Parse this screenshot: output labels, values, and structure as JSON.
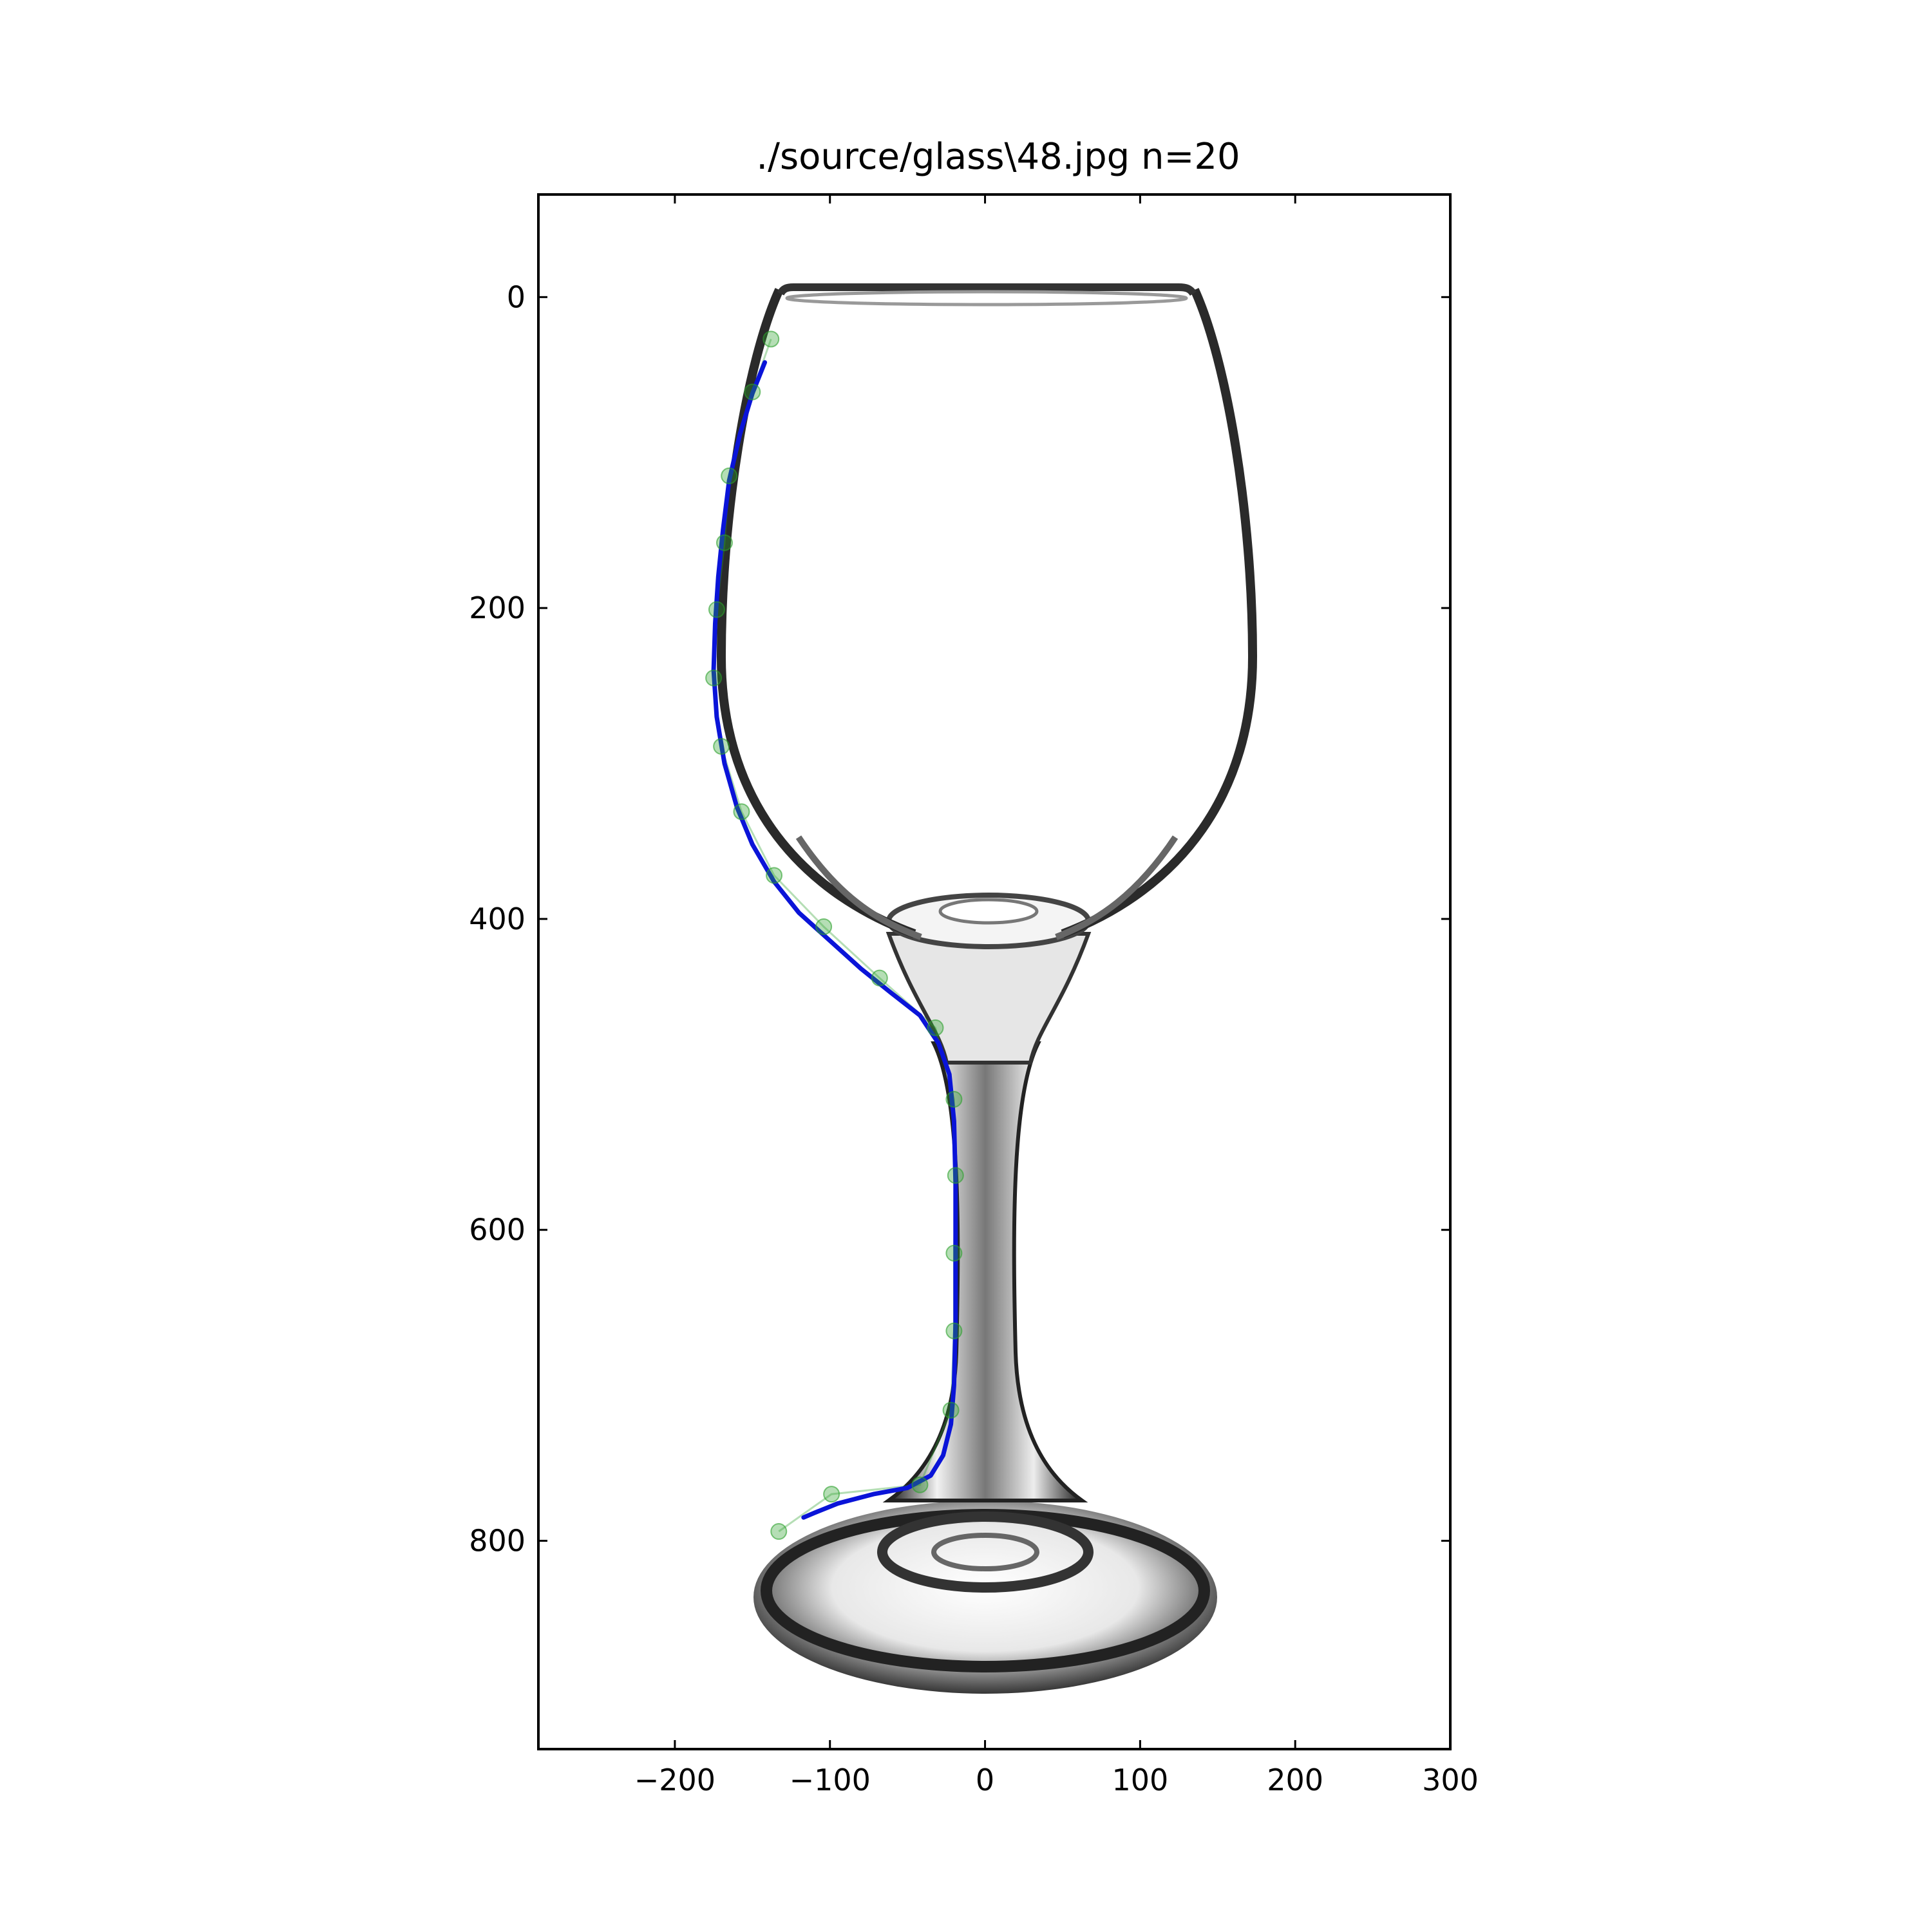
{
  "chart_data": {
    "type": "scatter",
    "title": "./source/glass\\48.jpg n=20",
    "xlabel": "",
    "ylabel": "",
    "xlim": [
      -288,
      300
    ],
    "ylim": [
      934,
      -66
    ],
    "y_inverted": true,
    "grid": false,
    "legend": "none",
    "background_image": "wine-glass",
    "xticks": [
      {
        "value": -200,
        "label": "−200"
      },
      {
        "value": -100,
        "label": "−100"
      },
      {
        "value": 0,
        "label": "0"
      },
      {
        "value": 100,
        "label": "100"
      },
      {
        "value": 200,
        "label": "200"
      },
      {
        "value": 300,
        "label": "300"
      }
    ],
    "yticks": [
      {
        "value": 0,
        "label": "0"
      },
      {
        "value": 200,
        "label": "200"
      },
      {
        "value": 400,
        "label": "400"
      },
      {
        "value": 600,
        "label": "600"
      },
      {
        "value": 800,
        "label": "800"
      }
    ],
    "series": [
      {
        "kind": "points",
        "color": "#2ca02c",
        "x": [
          -138,
          -150,
          -165,
          -168,
          -173,
          -175,
          -170,
          -157,
          -136,
          -104,
          -68,
          -32,
          -20,
          -19,
          -20,
          -20,
          -22,
          -42,
          -99,
          -133
        ],
        "y": [
          27,
          61,
          115,
          158,
          201,
          245,
          289,
          331,
          372,
          405,
          438,
          470,
          516,
          565,
          615,
          665,
          716,
          764,
          770,
          794
        ]
      },
      {
        "kind": "line",
        "color": "#0a14d8",
        "x": [
          -142,
          -150,
          -158,
          -165,
          -169,
          -172,
          -174,
          -175,
          -173,
          -168,
          -160,
          -150,
          -136,
          -120,
          -100,
          -80,
          -60,
          -42,
          -30,
          -23,
          -20,
          -19,
          -19,
          -19,
          -20,
          -22,
          -27,
          -35,
          -50,
          -72,
          -95,
          -110,
          -117
        ],
        "y": [
          42,
          62,
          88,
          118,
          150,
          180,
          210,
          240,
          270,
          300,
          328,
          352,
          376,
          396,
          414,
          432,
          448,
          462,
          480,
          500,
          530,
          570,
          620,
          660,
          700,
          725,
          745,
          758,
          766,
          770,
          776,
          782,
          785
        ]
      }
    ]
  }
}
